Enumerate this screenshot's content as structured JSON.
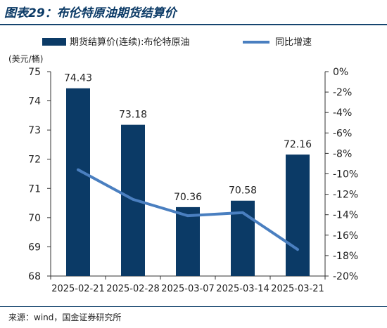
{
  "figure_title": "图表29：布伦特原油期货结算价",
  "source_text": "来源：wind，国金证券研究所",
  "colors": {
    "bar": "#0b3a66",
    "line": "#4a7fc0",
    "rule": "#16456f"
  },
  "chart_data": {
    "type": "bar+line",
    "categories": [
      "2025-02-21",
      "2025-02-28",
      "2025-03-07",
      "2025-03-14",
      "2025-03-21"
    ],
    "series": [
      {
        "name": "期货结算价(连续):布伦特原油",
        "type": "bar",
        "axis": "left",
        "values": [
          74.43,
          73.18,
          70.36,
          70.58,
          72.16
        ],
        "data_labels": [
          "74.43",
          "73.18",
          "70.36",
          "70.58",
          "72.16"
        ]
      },
      {
        "name": "同比增速",
        "type": "line",
        "axis": "right",
        "values": [
          -9.6,
          -12.5,
          -14.1,
          -13.8,
          -17.4
        ]
      }
    ],
    "left_axis": {
      "unit": "(美元/桶)",
      "ylim": [
        68,
        75
      ],
      "ticks": [
        "68",
        "69",
        "70",
        "71",
        "72",
        "73",
        "74",
        "75"
      ]
    },
    "right_axis": {
      "ylim": [
        -20,
        0
      ],
      "ticks": [
        "0%",
        "-2%",
        "-4%",
        "-6%",
        "-8%",
        "-10%",
        "-12%",
        "-14%",
        "-16%",
        "-18%",
        "-20%"
      ]
    },
    "legend_position": "top",
    "grid": false
  }
}
